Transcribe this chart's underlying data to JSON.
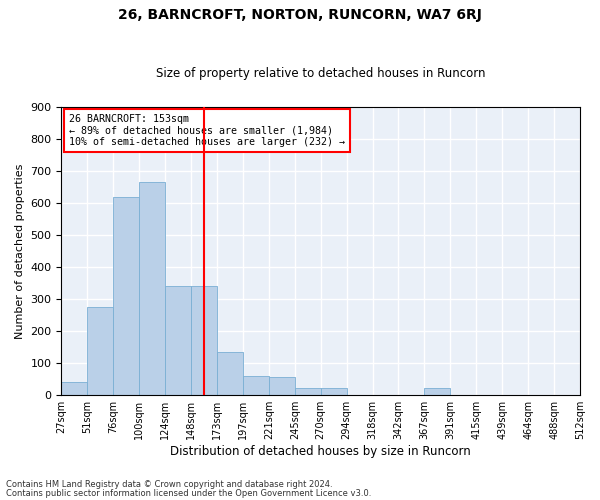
{
  "title": "26, BARNCROFT, NORTON, RUNCORN, WA7 6RJ",
  "subtitle": "Size of property relative to detached houses in Runcorn",
  "xlabel": "Distribution of detached houses by size in Runcorn",
  "ylabel": "Number of detached properties",
  "footnote1": "Contains HM Land Registry data © Crown copyright and database right 2024.",
  "footnote2": "Contains public sector information licensed under the Open Government Licence v3.0.",
  "annotation_line1": "26 BARNCROFT: 153sqm",
  "annotation_line2": "← 89% of detached houses are smaller (1,984)",
  "annotation_line3": "10% of semi-detached houses are larger (232) →",
  "bar_color": "#bad0e8",
  "bar_edge_color": "#7aafd4",
  "vline_color": "red",
  "vline_x": 5,
  "background_color": "#eaf0f8",
  "grid_color": "white",
  "bin_labels": [
    "27sqm",
    "51sqm",
    "76sqm",
    "100sqm",
    "124sqm",
    "148sqm",
    "173sqm",
    "197sqm",
    "221sqm",
    "245sqm",
    "270sqm",
    "294sqm",
    "318sqm",
    "342sqm",
    "367sqm",
    "391sqm",
    "415sqm",
    "439sqm",
    "464sqm",
    "488sqm",
    "512sqm"
  ],
  "bar_heights": [
    40,
    275,
    620,
    665,
    340,
    340,
    135,
    60,
    55,
    20,
    20,
    0,
    0,
    0,
    20,
    0,
    0,
    0,
    0,
    0
  ],
  "ylim": [
    0,
    900
  ],
  "yticks": [
    0,
    100,
    200,
    300,
    400,
    500,
    600,
    700,
    800,
    900
  ],
  "n_bars": 20
}
